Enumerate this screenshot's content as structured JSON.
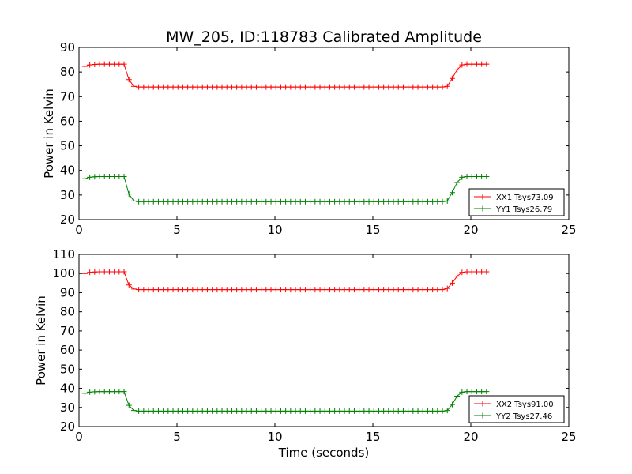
{
  "figure": {
    "title": "MW_205, ID:118783 Calibrated Amplitude",
    "xlabel": "Time (seconds)"
  },
  "chart_data": [
    {
      "type": "line",
      "title": "MW_205, ID:118783 Calibrated Amplitude",
      "xlabel": "",
      "ylabel": "Power in Kelvin",
      "xlim": [
        0,
        25
      ],
      "ylim": [
        20,
        90
      ],
      "xticks": [
        0,
        5,
        10,
        15,
        20,
        25
      ],
      "yticks": [
        20,
        30,
        40,
        50,
        60,
        70,
        80,
        90
      ],
      "xtick_labels": [
        "0",
        "5",
        "10",
        "15",
        "20",
        "25"
      ],
      "ytick_labels": [
        "20",
        "30",
        "40",
        "50",
        "60",
        "70",
        "80",
        "90"
      ],
      "legend_position": "lower-right",
      "series": [
        {
          "name": "XX1 Tsys73.09",
          "color": "#ff0000",
          "marker": "plus",
          "x_start": 0.3,
          "x_step": 0.25,
          "count": 83,
          "low": 73.9,
          "high": 83.2,
          "values": [
            82.3,
            82.9,
            83.1,
            83.2,
            83.2,
            83.2,
            83.2,
            83.2,
            83.2,
            76.9,
            74.2,
            73.9,
            73.9,
            73.9,
            73.9,
            73.9,
            73.9,
            73.9,
            73.9,
            73.9,
            73.9,
            73.9,
            73.9,
            73.9,
            73.9,
            73.9,
            73.9,
            73.9,
            73.9,
            73.9,
            73.9,
            73.9,
            73.9,
            73.9,
            73.9,
            73.9,
            73.9,
            73.9,
            73.9,
            73.9,
            73.9,
            73.9,
            73.9,
            73.9,
            73.9,
            73.9,
            73.9,
            73.9,
            73.9,
            73.9,
            73.9,
            73.9,
            73.9,
            73.9,
            73.9,
            73.9,
            73.9,
            73.9,
            73.9,
            73.9,
            73.9,
            73.9,
            73.9,
            73.9,
            73.9,
            73.9,
            73.9,
            73.9,
            73.9,
            73.9,
            73.9,
            73.9,
            73.9,
            73.9,
            74.2,
            77.4,
            80.9,
            82.9,
            83.2,
            83.2,
            83.2,
            83.2,
            83.2
          ]
        },
        {
          "name": "YY1 Tsys26.79",
          "color": "#008000",
          "marker": "plus",
          "x_start": 0.3,
          "x_step": 0.25,
          "count": 83,
          "low": 27.3,
          "high": 37.5,
          "values": [
            36.6,
            37.2,
            37.4,
            37.5,
            37.5,
            37.5,
            37.5,
            37.5,
            37.5,
            30.4,
            27.6,
            27.3,
            27.3,
            27.3,
            27.3,
            27.3,
            27.3,
            27.3,
            27.3,
            27.3,
            27.3,
            27.3,
            27.3,
            27.3,
            27.3,
            27.3,
            27.3,
            27.3,
            27.3,
            27.3,
            27.3,
            27.3,
            27.3,
            27.3,
            27.3,
            27.3,
            27.3,
            27.3,
            27.3,
            27.3,
            27.3,
            27.3,
            27.3,
            27.3,
            27.3,
            27.3,
            27.3,
            27.3,
            27.3,
            27.3,
            27.3,
            27.3,
            27.3,
            27.3,
            27.3,
            27.3,
            27.3,
            27.3,
            27.3,
            27.3,
            27.3,
            27.3,
            27.3,
            27.3,
            27.3,
            27.3,
            27.3,
            27.3,
            27.3,
            27.3,
            27.3,
            27.3,
            27.3,
            27.3,
            27.6,
            31.0,
            35.1,
            37.2,
            37.5,
            37.5,
            37.5,
            37.5,
            37.5
          ]
        }
      ]
    },
    {
      "type": "line",
      "title": "",
      "xlabel": "Time (seconds)",
      "ylabel": "Power in Kelvin",
      "xlim": [
        0,
        25
      ],
      "ylim": [
        20,
        110
      ],
      "xticks": [
        0,
        5,
        10,
        15,
        20,
        25
      ],
      "yticks": [
        20,
        30,
        40,
        50,
        60,
        70,
        80,
        90,
        100,
        110
      ],
      "xtick_labels": [
        "0",
        "5",
        "10",
        "15",
        "20",
        "25"
      ],
      "ytick_labels": [
        "20",
        "30",
        "40",
        "50",
        "60",
        "70",
        "80",
        "90",
        "100",
        "110"
      ],
      "legend_position": "lower-right",
      "series": [
        {
          "name": "XX2 Tsys91.00",
          "color": "#ff0000",
          "marker": "plus",
          "x_start": 0.3,
          "x_step": 0.25,
          "count": 83,
          "low": 91.6,
          "high": 100.9,
          "values": [
            100.0,
            100.6,
            100.8,
            100.9,
            100.9,
            100.9,
            100.9,
            100.9,
            100.9,
            94.0,
            91.9,
            91.6,
            91.6,
            91.6,
            91.6,
            91.6,
            91.6,
            91.6,
            91.6,
            91.6,
            91.6,
            91.6,
            91.6,
            91.6,
            91.6,
            91.6,
            91.6,
            91.6,
            91.6,
            91.6,
            91.6,
            91.6,
            91.6,
            91.6,
            91.6,
            91.6,
            91.6,
            91.6,
            91.6,
            91.6,
            91.6,
            91.6,
            91.6,
            91.6,
            91.6,
            91.6,
            91.6,
            91.6,
            91.6,
            91.6,
            91.6,
            91.6,
            91.6,
            91.6,
            91.6,
            91.6,
            91.6,
            91.6,
            91.6,
            91.6,
            91.6,
            91.6,
            91.6,
            91.6,
            91.6,
            91.6,
            91.6,
            91.6,
            91.6,
            91.6,
            91.6,
            91.6,
            91.6,
            91.6,
            92.2,
            95.0,
            98.6,
            100.6,
            100.9,
            100.9,
            100.9,
            100.9,
            100.9
          ]
        },
        {
          "name": "YY2 Tsys27.46",
          "color": "#008000",
          "marker": "plus",
          "x_start": 0.3,
          "x_step": 0.25,
          "count": 83,
          "low": 28.1,
          "high": 38.3,
          "values": [
            37.4,
            38.0,
            38.2,
            38.3,
            38.3,
            38.3,
            38.3,
            38.3,
            38.3,
            31.1,
            28.4,
            28.1,
            28.1,
            28.1,
            28.1,
            28.1,
            28.1,
            28.1,
            28.1,
            28.1,
            28.1,
            28.1,
            28.1,
            28.1,
            28.1,
            28.1,
            28.1,
            28.1,
            28.1,
            28.1,
            28.1,
            28.1,
            28.1,
            28.1,
            28.1,
            28.1,
            28.1,
            28.1,
            28.1,
            28.1,
            28.1,
            28.1,
            28.1,
            28.1,
            28.1,
            28.1,
            28.1,
            28.1,
            28.1,
            28.1,
            28.1,
            28.1,
            28.1,
            28.1,
            28.1,
            28.1,
            28.1,
            28.1,
            28.1,
            28.1,
            28.1,
            28.1,
            28.1,
            28.1,
            28.1,
            28.1,
            28.1,
            28.1,
            28.1,
            28.1,
            28.1,
            28.1,
            28.1,
            28.1,
            28.4,
            31.5,
            35.9,
            38.0,
            38.3,
            38.3,
            38.3,
            38.3,
            38.3
          ]
        }
      ]
    }
  ]
}
